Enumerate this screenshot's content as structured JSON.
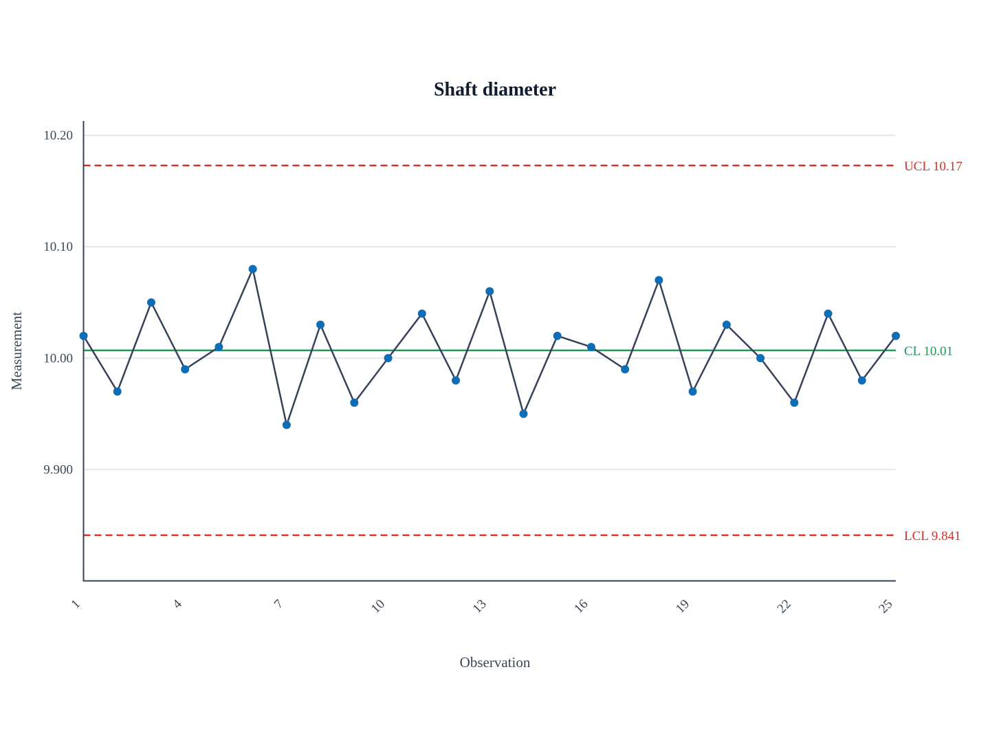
{
  "chart_data": {
    "type": "line",
    "title": "Shaft diameter",
    "xlabel": "Observation",
    "ylabel": "Measurement",
    "x": [
      1,
      2,
      3,
      4,
      5,
      6,
      7,
      8,
      9,
      10,
      11,
      12,
      13,
      14,
      15,
      16,
      17,
      18,
      19,
      20,
      21,
      22,
      23,
      24,
      25
    ],
    "series": [
      {
        "values": [
          10.02,
          9.97,
          10.05,
          9.99,
          10.01,
          10.08,
          9.94,
          10.03,
          9.96,
          10.0,
          10.04,
          9.98,
          10.06,
          9.95,
          10.02,
          10.01,
          9.99,
          10.07,
          9.97,
          10.03,
          10.0,
          9.96,
          10.04,
          9.98,
          10.02
        ]
      }
    ],
    "x_ticks": [
      "1",
      "4",
      "7",
      "10",
      "13",
      "16",
      "19",
      "22",
      "25"
    ],
    "y_ticks": [
      {
        "value": 9.9,
        "label": "9.900"
      },
      {
        "value": 10.0,
        "label": "10.00"
      },
      {
        "value": 10.1,
        "label": "10.10"
      },
      {
        "value": 10.2,
        "label": "10.20"
      }
    ],
    "xlim": [
      1,
      25
    ],
    "ylim": [
      9.8,
      10.213
    ],
    "grid": "horizontal",
    "control_limits": [
      {
        "kind": "ucl",
        "value": 10.173,
        "label": "UCL 10.17",
        "color": "#d0312d",
        "style": "dashed"
      },
      {
        "kind": "cl",
        "value": 10.007,
        "label": "CL 10.01",
        "color": "#21955a",
        "style": "solid"
      },
      {
        "kind": "lcl",
        "value": 9.841,
        "label": "LCL 9.841",
        "color": "#d0312d",
        "style": "dashed"
      }
    ],
    "colors": {
      "line": "#36415a",
      "marker": "#0f6db5",
      "axis": "#36415a",
      "grid": "#e3e8ee"
    }
  }
}
